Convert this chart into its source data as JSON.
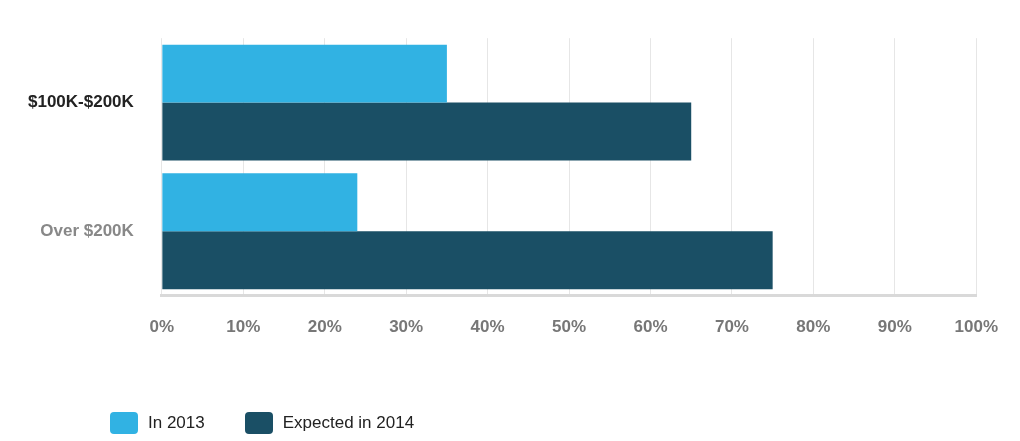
{
  "chart_data": {
    "type": "bar",
    "orientation": "horizontal",
    "categories": [
      "$100K-$200K",
      "Over $200K"
    ],
    "series": [
      {
        "name": "In 2013",
        "color": "#31b2e3",
        "values": [
          35,
          24
        ]
      },
      {
        "name": "Expected in 2014",
        "color": "#1a4f65",
        "values": [
          65,
          75
        ]
      }
    ],
    "xlim": [
      0,
      100
    ],
    "xticks": [
      {
        "value": 0,
        "label": "0%"
      },
      {
        "value": 10,
        "label": "10%"
      },
      {
        "value": 20,
        "label": "20%"
      },
      {
        "value": 30,
        "label": "30%"
      },
      {
        "value": 40,
        "label": "40%"
      },
      {
        "value": 50,
        "label": "50%"
      },
      {
        "value": 60,
        "label": "60%"
      },
      {
        "value": 70,
        "label": "70%"
      },
      {
        "value": 80,
        "label": "80%"
      },
      {
        "value": 90,
        "label": "90%"
      },
      {
        "value": 100,
        "label": "100%"
      }
    ],
    "grid": "x",
    "legend": "bottom left"
  }
}
